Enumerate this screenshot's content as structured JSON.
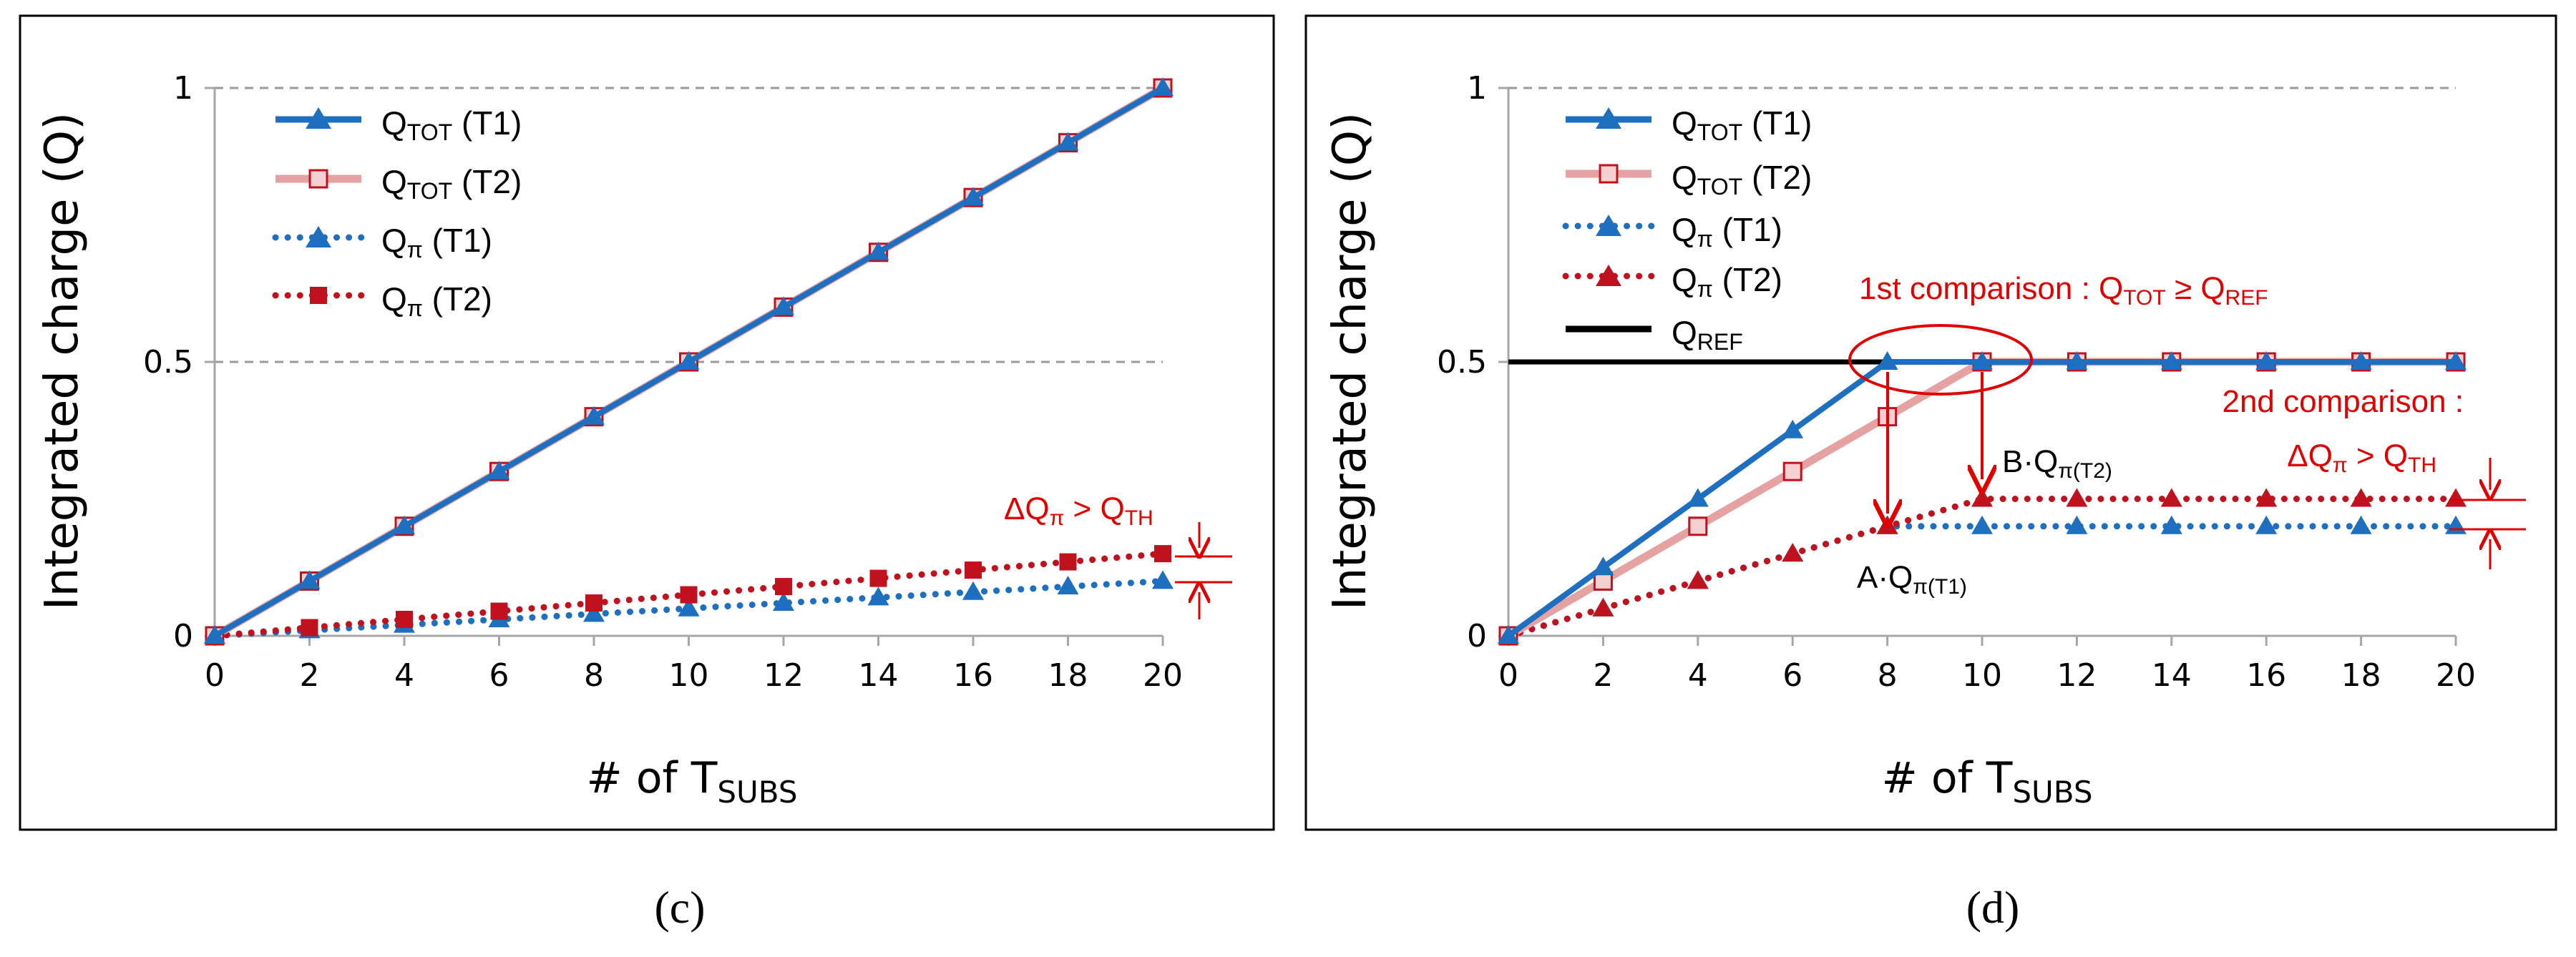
{
  "chart_data": [
    {
      "id": "c",
      "type": "line",
      "panel_label": "(c)",
      "xlabel": "# of T",
      "xlabel_sub": "SUBS",
      "ylabel": "Integrated charge (Q)",
      "xlim": [
        0,
        20
      ],
      "ylim": [
        0,
        1
      ],
      "xticks": [
        "0",
        "2",
        "4",
        "6",
        "8",
        "10",
        "12",
        "14",
        "16",
        "18",
        "20"
      ],
      "yticks": [
        {
          "value": 0,
          "label": "0"
        },
        {
          "value": 0.5,
          "label": "0.5"
        },
        {
          "value": 1,
          "label": "1"
        }
      ],
      "grid": "dashed horizontal at 0.5 and 1",
      "legend_position": "top-left",
      "x": [
        0,
        2,
        4,
        6,
        8,
        10,
        12,
        14,
        16,
        18,
        20
      ],
      "series": [
        {
          "key": "qtot_t1",
          "name": "Q",
          "sub": "TOT",
          "suffix": " (T1)",
          "color": "#1F6FC0",
          "style": "solid",
          "marker": "triangle-filled",
          "values": [
            0,
            0.1,
            0.2,
            0.3,
            0.4,
            0.5,
            0.6,
            0.7,
            0.8,
            0.9,
            1.0
          ]
        },
        {
          "key": "qtot_t2",
          "name": "Q",
          "sub": "TOT",
          "suffix": " (T2)",
          "color": "#E5A2A2",
          "marker_color": "#C0121E",
          "style": "solid",
          "marker": "square-open",
          "values": [
            0,
            0.1,
            0.2,
            0.3,
            0.4,
            0.5,
            0.6,
            0.7,
            0.8,
            0.9,
            1.0
          ]
        },
        {
          "key": "qpi_t1",
          "name": "Q",
          "sub": "π",
          "suffix": " (T1)",
          "color": "#1F6FC0",
          "style": "dotted",
          "marker": "triangle-filled",
          "values": [
            0,
            0.01,
            0.02,
            0.03,
            0.04,
            0.05,
            0.06,
            0.07,
            0.08,
            0.09,
            0.1
          ]
        },
        {
          "key": "qpi_t2",
          "name": "Q",
          "sub": "π",
          "suffix": " (T2)",
          "color": "#C0121E",
          "style": "dotted",
          "marker": "square-filled",
          "values": [
            0,
            0.015,
            0.03,
            0.045,
            0.06,
            0.075,
            0.09,
            0.105,
            0.12,
            0.135,
            0.15
          ]
        }
      ],
      "annotations": [
        {
          "key": "delta",
          "text": "ΔQ",
          "sub1": "π",
          "mid": " > Q",
          "sub2": "TH",
          "color": "#E00000"
        }
      ]
    },
    {
      "id": "d",
      "type": "line",
      "panel_label": "(d)",
      "xlabel": "# of T",
      "xlabel_sub": "SUBS",
      "ylabel": "Integrated charge (Q)",
      "xlim": [
        0,
        20
      ],
      "ylim": [
        0,
        1
      ],
      "xticks": [
        "0",
        "2",
        "4",
        "6",
        "8",
        "10",
        "12",
        "14",
        "16",
        "18",
        "20"
      ],
      "yticks": [
        {
          "value": 0,
          "label": "0"
        },
        {
          "value": 0.5,
          "label": "0.5"
        },
        {
          "value": 1,
          "label": "1"
        }
      ],
      "grid": "dashed horizontal at 1",
      "legend_position": "top-left",
      "x": [
        0,
        2,
        4,
        6,
        8,
        10,
        12,
        14,
        16,
        18,
        20
      ],
      "series": [
        {
          "key": "qtot_t1",
          "name": "Q",
          "sub": "TOT",
          "suffix": "  (T1)",
          "color": "#1F6FC0",
          "style": "solid",
          "marker": "triangle-filled",
          "values": [
            0,
            0.125,
            0.25,
            0.375,
            0.5,
            0.5,
            0.5,
            0.5,
            0.5,
            0.5,
            0.5
          ]
        },
        {
          "key": "qtot_t2",
          "name": "Q",
          "sub": "TOT",
          "suffix": " (T2)",
          "color": "#E5A2A2",
          "marker_color": "#C0121E",
          "style": "solid",
          "marker": "square-open",
          "values": [
            0,
            0.1,
            0.2,
            0.3,
            0.4,
            0.5,
            0.5,
            0.5,
            0.5,
            0.5,
            0.5
          ]
        },
        {
          "key": "qpi_t1",
          "name": "Q",
          "sub": "π",
          "suffix": " (T1)",
          "color": "#1F6FC0",
          "style": "dotted",
          "marker": "triangle-filled",
          "values": [
            0,
            0.05,
            0.1,
            0.15,
            0.2,
            0.2,
            0.2,
            0.2,
            0.2,
            0.2,
            0.2
          ]
        },
        {
          "key": "qpi_t2",
          "name": "Q",
          "sub": "π",
          "suffix": " (T2)",
          "color": "#C0121E",
          "style": "dotted",
          "marker": "triangle-filled",
          "values": [
            0,
            0.05,
            0.1,
            0.15,
            0.2,
            0.25,
            0.25,
            0.25,
            0.25,
            0.25,
            0.25
          ]
        },
        {
          "key": "qref",
          "name": "Q",
          "sub": "REF",
          "suffix": "",
          "color": "#000000",
          "style": "solid",
          "marker": "none",
          "values": [
            0.5,
            0.5,
            0.5,
            0.5,
            0.5,
            0.5,
            0.5,
            0.5,
            0.5,
            0.5,
            0.5
          ]
        }
      ],
      "annotations": [
        {
          "key": "first",
          "text": "1st comparison : Q",
          "sub1": "TOT",
          "mid": " ≥ Q",
          "sub2": "REF",
          "color": "#E00000"
        },
        {
          "key": "second_1",
          "text": "2nd comparison :",
          "color": "#E00000"
        },
        {
          "key": "second_2",
          "text": "ΔQ",
          "sub1": "π",
          "mid": " > Q",
          "sub2": "TH",
          "color": "#E00000"
        },
        {
          "key": "b",
          "text": "B·Q",
          "sub1": "π(T2)",
          "color": "#000000"
        },
        {
          "key": "a",
          "text": "A·Q",
          "sub1": "π(T1)",
          "color": "#000000"
        }
      ]
    }
  ]
}
